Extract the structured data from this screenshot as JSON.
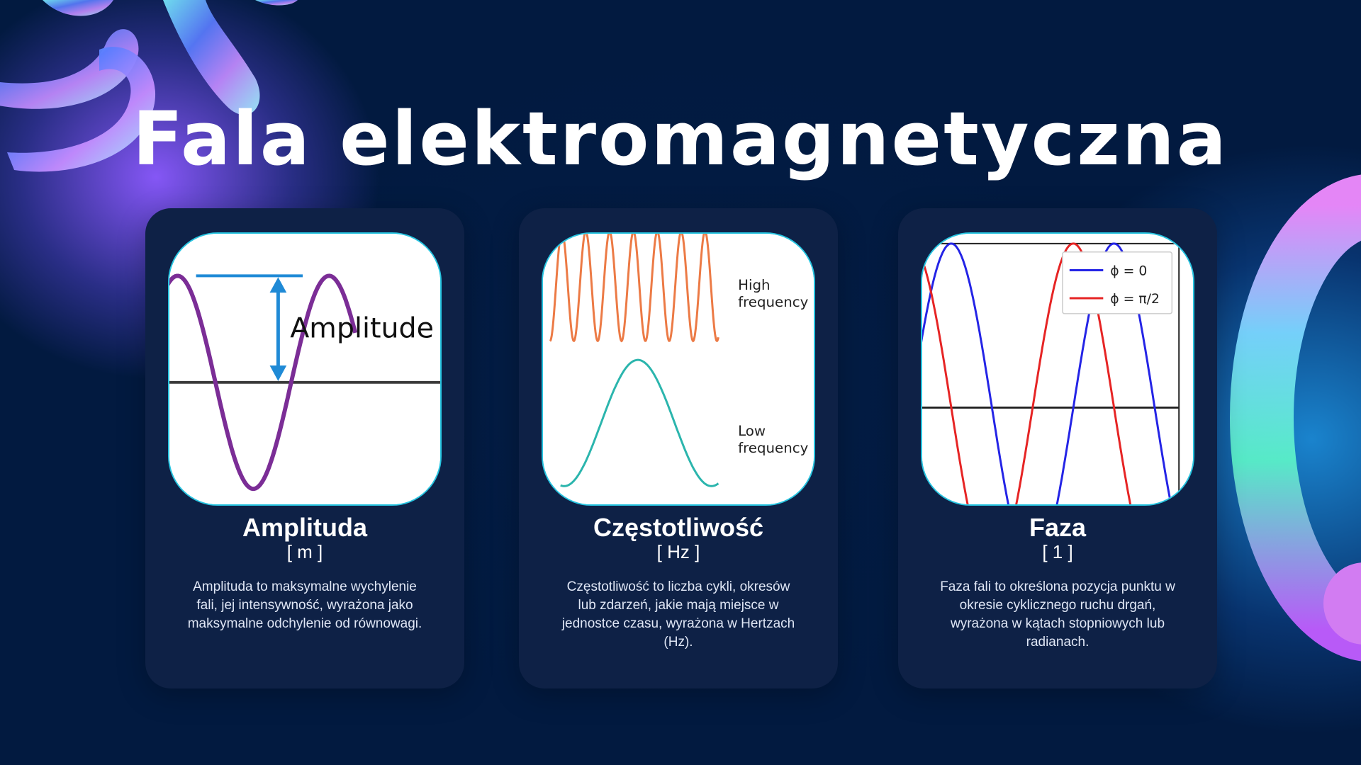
{
  "slide": {
    "title": "Fala elektromagnetyczna"
  },
  "cards": [
    {
      "name": "Amplituda",
      "unit": "[ m ]",
      "description": "Amplituda to maksymalne wychylenie fali, jej intensywność, wyrażona jako maksymalne odchylenie od równowagi.",
      "illustration": {
        "label": "Amplitude",
        "wave_color": "#7b2d96",
        "arrow_color": "#1f8ad6"
      }
    },
    {
      "name": "Częstotliwość",
      "unit": "[ Hz ]",
      "description": "Częstotliwość to liczba cykli, okresów lub zdarzeń, jakie mają miejsce w jednostce czasu, wyrażona w Hertzach (Hz).",
      "illustration": {
        "high_label_1": "High",
        "high_label_2": "frequency",
        "low_label_1": "Low",
        "low_label_2": "frequency",
        "high_color": "#ec7a45",
        "low_color": "#2bb5ad"
      }
    },
    {
      "name": "Faza",
      "unit": "[ 1 ]",
      "description": "Faza fali to określona pozycja punktu w okresie cyklicznego ruchu drgań, wyrażona w kątach stopniowych lub radianach.",
      "illustration": {
        "legend": [
          {
            "label": "ϕ = 0",
            "color": "#2424e6"
          },
          {
            "label": "ϕ = π/2",
            "color": "#e62424"
          }
        ]
      }
    }
  ]
}
